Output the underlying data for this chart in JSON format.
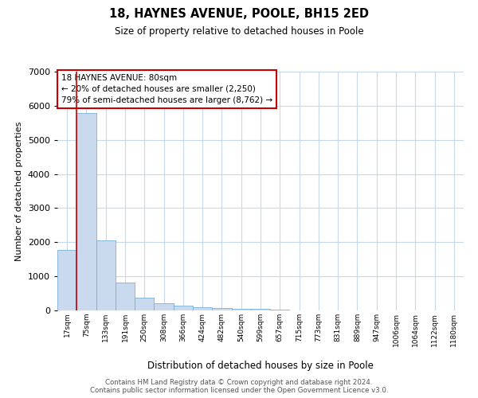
{
  "title": "18, HAYNES AVENUE, POOLE, BH15 2ED",
  "subtitle": "Size of property relative to detached houses in Poole",
  "xlabel": "Distribution of detached houses by size in Poole",
  "ylabel": "Number of detached properties",
  "bin_labels": [
    "17sqm",
    "75sqm",
    "133sqm",
    "191sqm",
    "250sqm",
    "308sqm",
    "366sqm",
    "424sqm",
    "482sqm",
    "540sqm",
    "599sqm",
    "657sqm",
    "715sqm",
    "773sqm",
    "831sqm",
    "889sqm",
    "947sqm",
    "1006sqm",
    "1064sqm",
    "1122sqm",
    "1180sqm"
  ],
  "bar_heights": [
    1780,
    5780,
    2060,
    820,
    370,
    220,
    130,
    90,
    80,
    50,
    40,
    30,
    0,
    0,
    0,
    0,
    0,
    0,
    0,
    0,
    0
  ],
  "bar_color": "#c9d9ee",
  "bar_edge_color": "#7bafd4",
  "vline_x_idx": 1,
  "vline_color": "#cc0000",
  "annotation_text": "18 HAYNES AVENUE: 80sqm\n← 20% of detached houses are smaller (2,250)\n79% of semi-detached houses are larger (8,762) →",
  "annotation_box_color": "#ffffff",
  "annotation_box_edge": "#cc0000",
  "ylim": [
    0,
    7000
  ],
  "yticks": [
    0,
    1000,
    2000,
    3000,
    4000,
    5000,
    6000,
    7000
  ],
  "footer_line1": "Contains HM Land Registry data © Crown copyright and database right 2024.",
  "footer_line2": "Contains public sector information licensed under the Open Government Licence v3.0.",
  "bg_color": "#ffffff",
  "grid_color": "#c8d8ec"
}
